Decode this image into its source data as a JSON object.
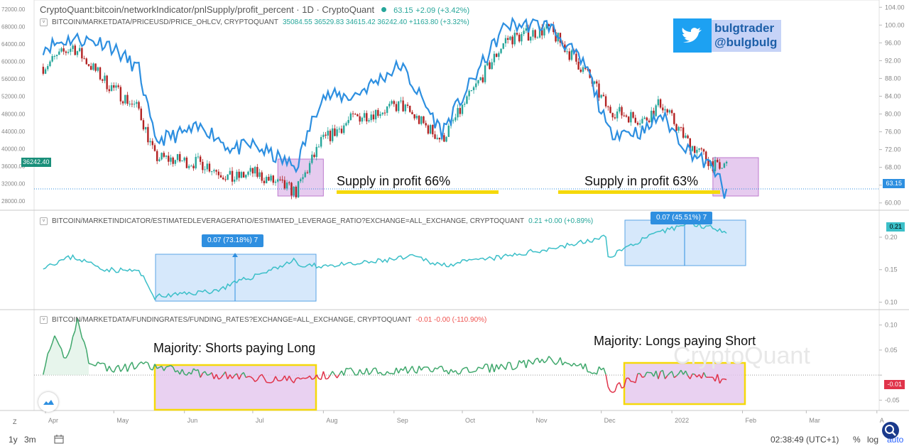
{
  "title": {
    "text": "CryptoQuant:bitcoin/networkIndicator/pnlSupply/profit_percent · 1D · CryptoQuant",
    "value": "63.15",
    "change": "+2.09 (+3.42%)"
  },
  "twitter": {
    "line1": "bulgtrader",
    "line2": "@bulgbulg"
  },
  "watermark": "CryptoQuant",
  "colors": {
    "profit_line": "#2d8fe0",
    "leverage_line": "#3bbfc8",
    "funding_pos": "#3ea76b",
    "funding_neg": "#e0334a",
    "candle_up": "#26a69a",
    "candle_down": "#b22222",
    "box_purple": "#e4c6ee",
    "box_blue": "#cfe4fa",
    "yellow": "#f5d90a",
    "twitter_blue": "#1da1f2"
  },
  "panes": {
    "price": {
      "header": "BITCOIN/MARKETDATA/PRICEUSD/PRICE_OHLCV, CRYPTOQUANT",
      "values": "35084.55  36529.83  34615.42  36242.40  +1163.80 (+3.32%)",
      "left_ticks": [
        "72000.00",
        "68000.00",
        "64000.00",
        "60000.00",
        "56000.00",
        "52000.00",
        "48000.00",
        "44000.00",
        "40000.00",
        "36000.00",
        "32000.00",
        "28000.00"
      ],
      "price_label": "36242.40"
    },
    "leverage": {
      "header": "BITCOIN/MARKETINDICATOR/ESTIMATEDLEVERAGERATIO/ESTIMATED_LEVERAGE_RATIO?EXCHANGE=ALL_EXCHANGE, CRYPTOQUANT",
      "values": "0.21  +0.00 (+0.89%)",
      "right_ticks": [
        "0.20",
        "0.15",
        "0.10"
      ],
      "last_label": "0.21"
    },
    "funding": {
      "header": "BITCOIN/MARKETDATA/FUNDINGRATES/FUNDING_RATES?EXCHANGE=ALL_EXCHANGE, CRYPTOQUANT",
      "values": "-0.01  -0.00 (-110.90%)",
      "right_ticks": [
        "0.10",
        "0.05",
        "0.00",
        "-0.05"
      ],
      "last_label": "-0.01"
    }
  },
  "annotations": {
    "supply1": "Supply in profit 66%",
    "supply2": "Supply in profit 63%",
    "shorts": "Majority: Shorts paying Long",
    "longs": "Majority: Longs paying Short",
    "tip1": "0.07 (73.18%) 7",
    "tip2": "0.07 (45.51%) 7"
  },
  "xaxis": {
    "labels": [
      "Apr",
      "May",
      "Jun",
      "Jul",
      "Aug",
      "Sep",
      "Oct",
      "Nov",
      "Dec",
      "2022",
      "Feb",
      "Mar",
      "A"
    ]
  },
  "bottom": {
    "range": "1y",
    "interval": "3m",
    "time": "02:38:49 (UTC+1)",
    "percent": "%",
    "log": "log",
    "auto": "auto",
    "z": "Z"
  },
  "chart_data": [
    {
      "type": "line",
      "name": "profit_percent",
      "y_axis_ticks": [
        60,
        64,
        68,
        72,
        76,
        80,
        84,
        88,
        92,
        96,
        100,
        104
      ],
      "ylim": [
        59,
        105
      ],
      "x": [
        "2021-03-31",
        "2021-04-13",
        "2021-04-28",
        "2021-05-12",
        "2021-05-19",
        "2021-06-10",
        "2021-06-22",
        "2021-07-01",
        "2021-07-20",
        "2021-07-31",
        "2021-08-14",
        "2021-09-04",
        "2021-09-22",
        "2021-10-20",
        "2021-11-08",
        "2021-11-25",
        "2021-12-04",
        "2021-12-20",
        "2021-12-27",
        "2022-01-08",
        "2022-01-22",
        "2022-01-24",
        "2022-01-25"
      ],
      "values": [
        95,
        97,
        96,
        90,
        74,
        77,
        72,
        73,
        68,
        84,
        84,
        91,
        76,
        100,
        100,
        90,
        76,
        76,
        80,
        72,
        66.5,
        61.0,
        63.15
      ],
      "last_value": 63.15
    },
    {
      "type": "candlestick",
      "name": "PRICE_OHLCV",
      "y_axis_ticks": [
        28000,
        32000,
        36000,
        40000,
        44000,
        48000,
        52000,
        56000,
        60000,
        64000,
        68000,
        72000
      ],
      "ylim": [
        26500,
        73500
      ],
      "x": [
        "2021-03-31",
        "2021-04-13",
        "2021-04-28",
        "2021-05-12",
        "2021-05-19",
        "2021-06-10",
        "2021-06-22",
        "2021-07-01",
        "2021-07-20",
        "2021-07-31",
        "2021-08-14",
        "2021-09-04",
        "2021-09-22",
        "2021-10-20",
        "2021-11-08",
        "2021-11-25",
        "2021-12-04",
        "2021-12-20",
        "2021-12-27",
        "2022-01-08",
        "2022-01-22",
        "2022-01-24",
        "2022-01-25"
      ],
      "close": [
        58800,
        63500,
        55000,
        49000,
        38000,
        36500,
        33000,
        34500,
        30000,
        41500,
        47000,
        50000,
        42000,
        65000,
        67500,
        57000,
        49000,
        46500,
        50500,
        41500,
        35000,
        36300,
        36242.4
      ],
      "last": {
        "open": 35084.55,
        "high": 36529.83,
        "low": 34615.42,
        "close": 36242.4
      }
    },
    {
      "type": "line",
      "name": "ESTIMATED_LEVERAGE_RATIO",
      "y_axis_ticks": [
        0.1,
        0.15,
        0.2
      ],
      "ylim": [
        0.095,
        0.235
      ],
      "x": [
        "2021-03-31",
        "2021-04-13",
        "2021-04-28",
        "2021-05-12",
        "2021-05-19",
        "2021-06-15",
        "2021-07-20",
        "2021-07-21",
        "2021-08-14",
        "2021-09-10",
        "2021-09-22",
        "2021-10-20",
        "2021-11-20",
        "2021-12-03",
        "2021-12-04",
        "2021-12-20",
        "2022-01-08",
        "2022-01-25"
      ],
      "values": [
        0.155,
        0.17,
        0.15,
        0.148,
        0.108,
        0.118,
        0.165,
        0.155,
        0.158,
        0.17,
        0.157,
        0.17,
        0.19,
        0.2,
        0.17,
        0.198,
        0.222,
        0.21
      ],
      "last_value": 0.21
    },
    {
      "type": "line",
      "name": "FUNDING_RATES",
      "y_axis_ticks": [
        -0.05,
        0.0,
        0.05,
        0.1
      ],
      "ylim": [
        -0.065,
        0.125
      ],
      "x": [
        "2021-03-31",
        "2021-04-05",
        "2021-04-10",
        "2021-04-15",
        "2021-04-20",
        "2021-05-01",
        "2021-05-12",
        "2021-05-19",
        "2021-06-15",
        "2021-07-20",
        "2021-08-14",
        "2021-09-15",
        "2021-10-01",
        "2021-10-25",
        "2021-11-10",
        "2021-12-03",
        "2021-12-04",
        "2021-12-20",
        "2022-01-08",
        "2022-01-25"
      ],
      "values": [
        0.01,
        0.07,
        0.03,
        0.11,
        0.03,
        0.01,
        0.02,
        0.015,
        0.0,
        -0.01,
        0.008,
        0.01,
        0.008,
        0.02,
        0.03,
        0.005,
        -0.03,
        0.0,
        0.002,
        -0.01
      ],
      "last_value": -0.01
    }
  ]
}
